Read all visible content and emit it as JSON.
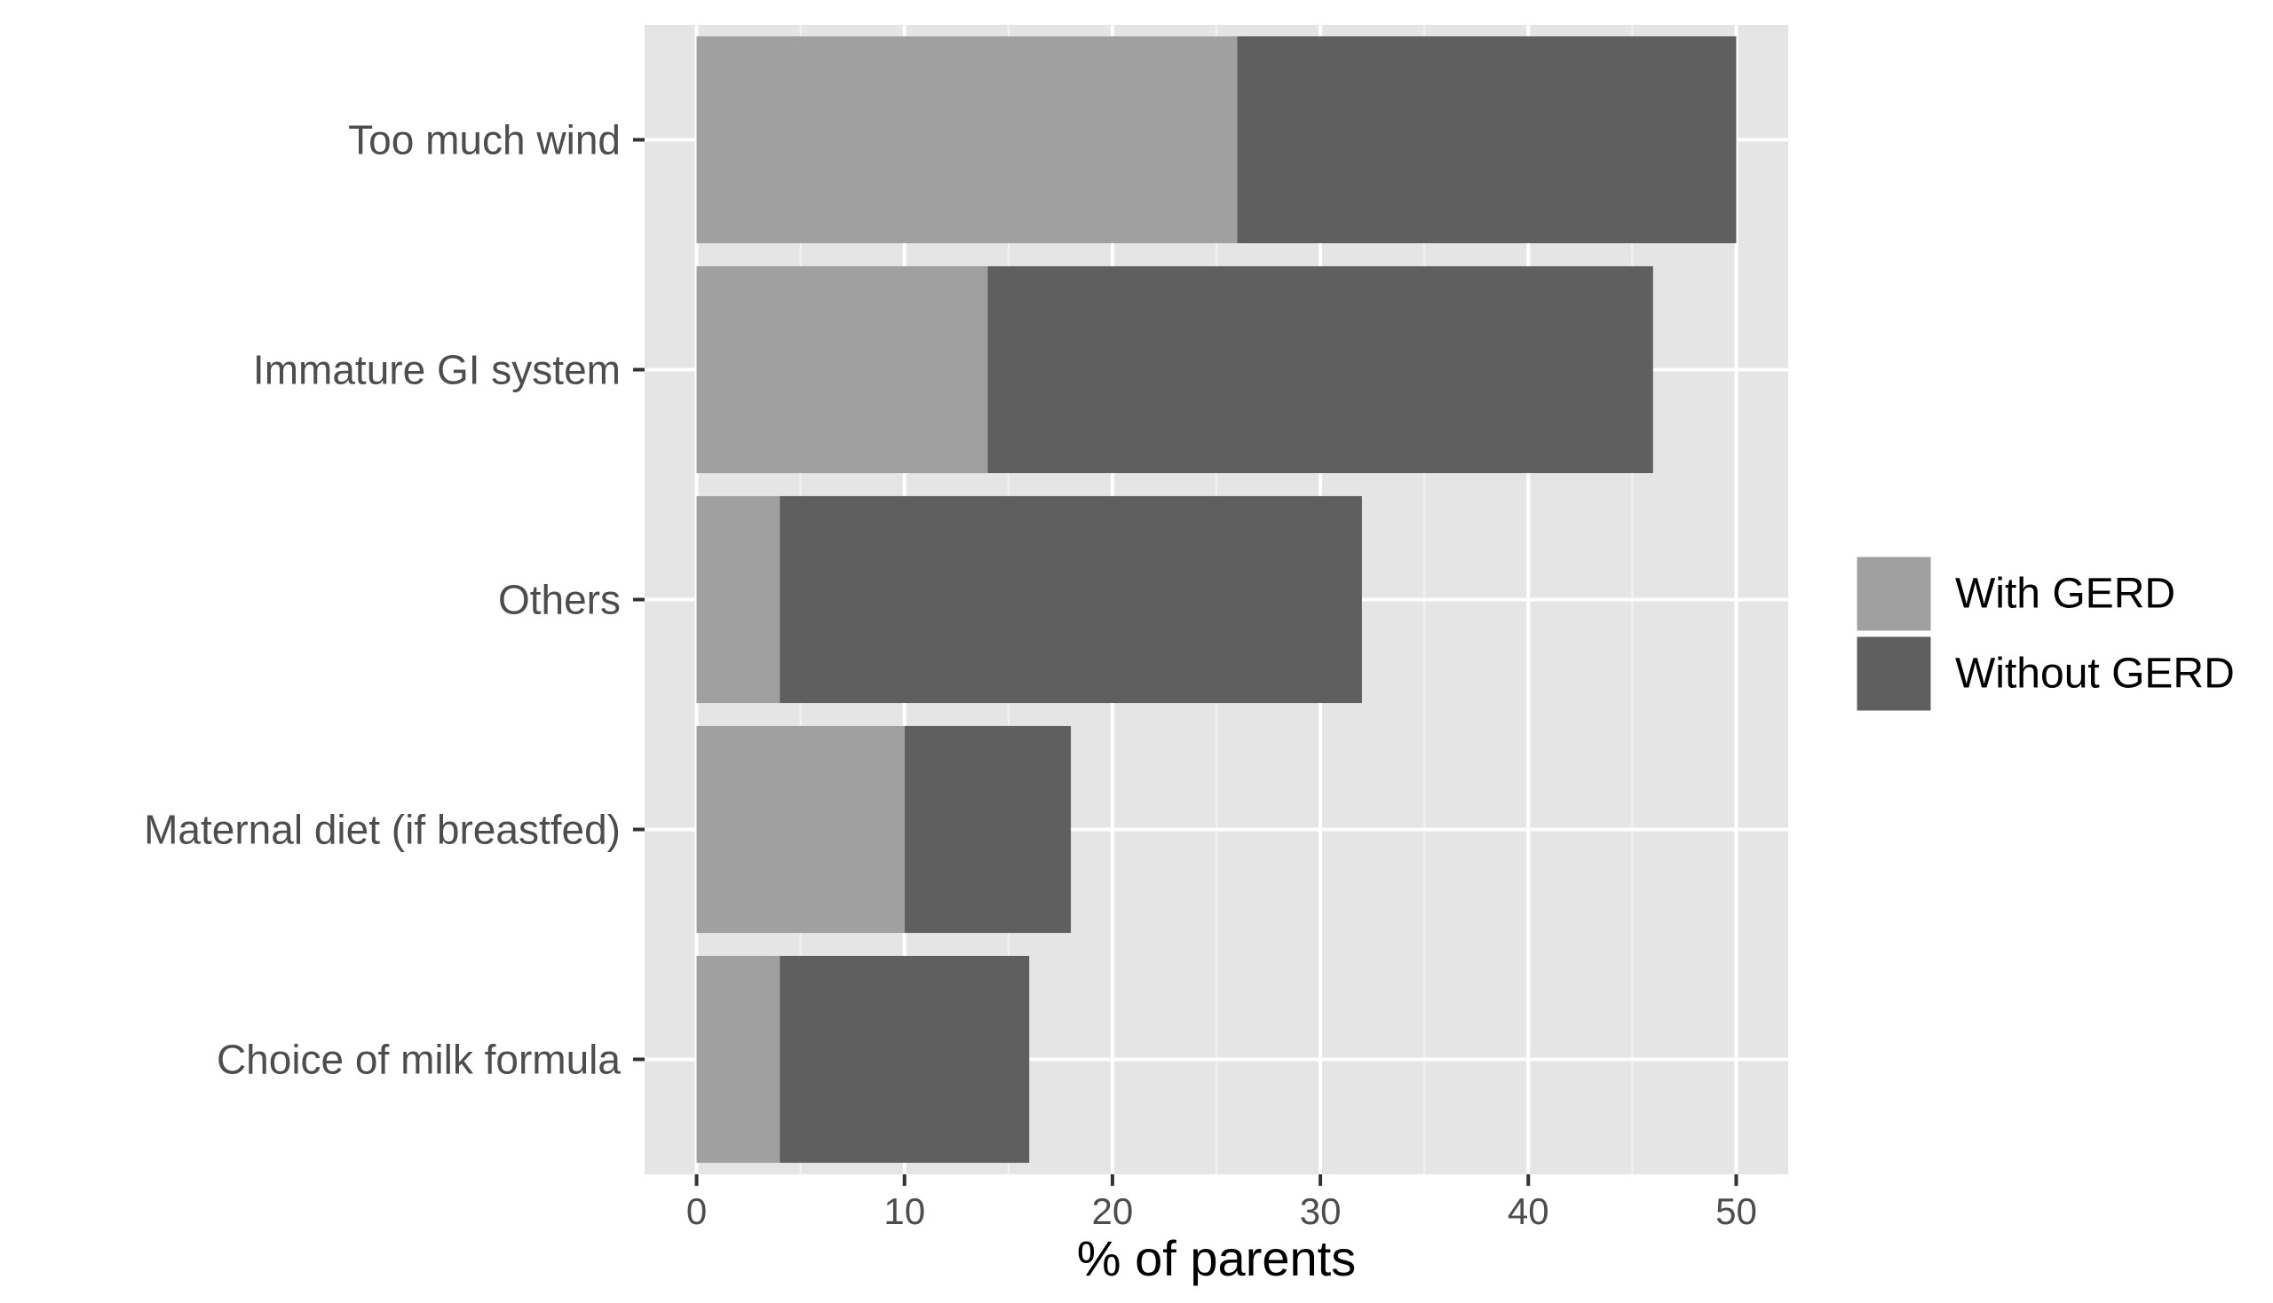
{
  "chart_data": {
    "type": "bar",
    "orientation": "horizontal",
    "stacked": true,
    "categories": [
      "Too much wind",
      "Immature GI system",
      "Others",
      "Maternal diet (if breastfed)",
      "Choice of milk formula"
    ],
    "series": [
      {
        "name": "With GERD",
        "values": [
          26,
          14,
          4,
          10,
          4
        ],
        "color": "#a0a0a0"
      },
      {
        "name": "Without GERD",
        "values": [
          24,
          32,
          28,
          8,
          12
        ],
        "color": "#5f5f5f"
      }
    ],
    "title": "",
    "xlabel": "% of parents",
    "ylabel": "",
    "xlim": [
      -2.5,
      52.5
    ],
    "xticks": [
      0,
      10,
      20,
      30,
      40,
      50
    ],
    "xtick_labels": [
      "0",
      "10",
      "20",
      "30",
      "40",
      "50"
    ],
    "grid": true,
    "legend_position": "right",
    "panel_background": "#e5e5e5"
  }
}
